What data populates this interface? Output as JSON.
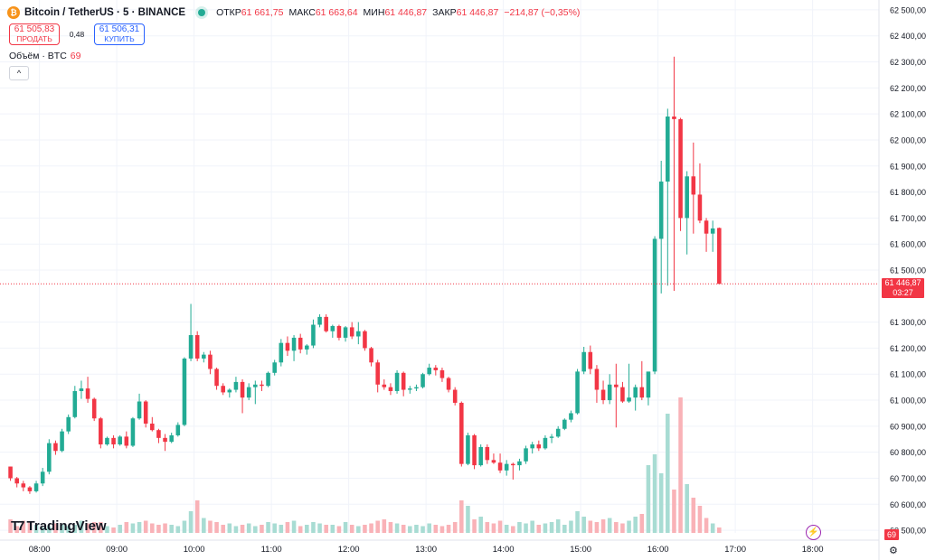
{
  "header": {
    "symbol_title": "Bitcoin / TetherUS · 5 · BINANCE",
    "open_label": "ОТКР",
    "open_value": "61 661,75",
    "high_label": "МАКС",
    "high_value": "61 663,64",
    "low_label": "МИН",
    "low_value": "61 446,87",
    "close_label": "ЗАКР",
    "close_value": "61 446,87",
    "change_value": "−214,87 (−0,35%)"
  },
  "trade": {
    "sell_price": "61 505,83",
    "sell_label": "ПРОДАТЬ",
    "spread": "0,48",
    "buy_price": "61 506,31",
    "buy_label": "КУПИТЬ"
  },
  "volume": {
    "label": "Объём · BTC",
    "value": "69",
    "collapse_glyph": "^"
  },
  "branding": {
    "name": "TradingView"
  },
  "price_tag": {
    "price": "61 446,87",
    "countdown": "03:27"
  },
  "volume_tag": "69",
  "colors": {
    "up": "#22ab94",
    "down": "#f23645",
    "up_volume": "#a8dcd3",
    "down_volume": "#f9b2b7",
    "grid": "#f0f3fa",
    "axis_text": "#131722"
  },
  "icons": {
    "logo": "bitcoin-logo-icon",
    "market_status": "market-open-dot-icon",
    "alert": "lightning-icon",
    "settings": "gear-icon"
  },
  "chart_data": {
    "type": "candlestick",
    "x_tick_labels": [
      "08:00",
      "09:00",
      "10:00",
      "11:00",
      "12:00",
      "13:00",
      "14:00",
      "15:00",
      "16:00",
      "17:00",
      "18:00"
    ],
    "y_tick_labels": [
      "62 500,00",
      "62 400,00",
      "62 300,00",
      "62 200,00",
      "62 100,00",
      "62 000,00",
      "61 900,00",
      "61 800,00",
      "61 700,00",
      "61 600,00",
      "61 500,00",
      "61 300,00",
      "61 200,00",
      "61 100,00",
      "61 000,00",
      "60 900,00",
      "60 800,00",
      "60 700,00",
      "60 600,00",
      "60 500,00"
    ],
    "ylim": [
      60490,
      62510
    ],
    "x_start_time": "07:35",
    "interval_minutes": 5,
    "last_price": 61446.87,
    "candles": [
      [
        60745,
        60745,
        60690,
        60700
      ],
      [
        60700,
        60705,
        60665,
        60680
      ],
      [
        60680,
        60690,
        60650,
        60665
      ],
      [
        60665,
        60670,
        60640,
        60650
      ],
      [
        60650,
        60690,
        60645,
        60680
      ],
      [
        60680,
        60740,
        60670,
        60725
      ],
      [
        60725,
        60850,
        60715,
        60835
      ],
      [
        60835,
        60845,
        60790,
        60805
      ],
      [
        60805,
        60890,
        60800,
        60880
      ],
      [
        60880,
        60945,
        60870,
        60935
      ],
      [
        60935,
        61055,
        60930,
        61035
      ],
      [
        61035,
        61075,
        61005,
        61045
      ],
      [
        61045,
        61090,
        60990,
        61005
      ],
      [
        61005,
        61010,
        60920,
        60930
      ],
      [
        60930,
        60935,
        60815,
        60830
      ],
      [
        60830,
        60860,
        60825,
        60855
      ],
      [
        60855,
        60865,
        60815,
        60830
      ],
      [
        60830,
        60865,
        60825,
        60860
      ],
      [
        60860,
        60880,
        60815,
        60825
      ],
      [
        60825,
        60935,
        60820,
        60930
      ],
      [
        60930,
        61025,
        60925,
        60995
      ],
      [
        60995,
        61000,
        60895,
        60910
      ],
      [
        60910,
        60935,
        60880,
        60885
      ],
      [
        60885,
        60890,
        60835,
        60855
      ],
      [
        60855,
        60870,
        60805,
        60840
      ],
      [
        60840,
        60875,
        60835,
        60865
      ],
      [
        60865,
        60915,
        60860,
        60905
      ],
      [
        60905,
        61165,
        60900,
        61160
      ],
      [
        61160,
        61370,
        61150,
        61250
      ],
      [
        61250,
        61265,
        61150,
        61160
      ],
      [
        61160,
        61185,
        61145,
        61175
      ],
      [
        61175,
        61190,
        61100,
        61120
      ],
      [
        61120,
        61125,
        61040,
        61055
      ],
      [
        61055,
        61065,
        61020,
        61030
      ],
      [
        61030,
        61045,
        61010,
        61040
      ],
      [
        61040,
        61090,
        61030,
        61070
      ],
      [
        61070,
        61080,
        60950,
        61010
      ],
      [
        61010,
        61065,
        61000,
        61050
      ],
      [
        61050,
        61075,
        60985,
        61060
      ],
      [
        61060,
        61075,
        61035,
        61055
      ],
      [
        61055,
        61110,
        61050,
        61105
      ],
      [
        61105,
        61155,
        61095,
        61145
      ],
      [
        61145,
        61235,
        61130,
        61220
      ],
      [
        61220,
        61245,
        61170,
        61190
      ],
      [
        61190,
        61250,
        61150,
        61240
      ],
      [
        61240,
        61255,
        61180,
        61195
      ],
      [
        61195,
        61215,
        61175,
        61210
      ],
      [
        61210,
        61310,
        61200,
        61290
      ],
      [
        61290,
        61330,
        61280,
        61320
      ],
      [
        61320,
        61330,
        61260,
        61265
      ],
      [
        61265,
        61290,
        61240,
        61285
      ],
      [
        61285,
        61290,
        61230,
        61240
      ],
      [
        61240,
        61285,
        61225,
        61280
      ],
      [
        61280,
        61300,
        61235,
        61245
      ],
      [
        61245,
        61300,
        61215,
        61265
      ],
      [
        61265,
        61270,
        61190,
        61200
      ],
      [
        61200,
        61205,
        61130,
        61145
      ],
      [
        61145,
        61155,
        61030,
        61060
      ],
      [
        61060,
        61080,
        61040,
        61050
      ],
      [
        61050,
        61065,
        61020,
        61035
      ],
      [
        61035,
        61115,
        61025,
        61105
      ],
      [
        61105,
        61110,
        61015,
        61040
      ],
      [
        61040,
        61055,
        61025,
        61045
      ],
      [
        61045,
        61060,
        61035,
        61050
      ],
      [
        61050,
        61105,
        61045,
        61100
      ],
      [
        61100,
        61140,
        61095,
        61125
      ],
      [
        61125,
        61135,
        61095,
        61115
      ],
      [
        61115,
        61125,
        61070,
        61085
      ],
      [
        61085,
        61090,
        61030,
        61040
      ],
      [
        61040,
        61050,
        60980,
        60990
      ],
      [
        60990,
        60995,
        60745,
        60755
      ],
      [
        60755,
        60875,
        60750,
        60865
      ],
      [
        60865,
        60870,
        60735,
        60750
      ],
      [
        60750,
        60830,
        60745,
        60820
      ],
      [
        60820,
        60830,
        60755,
        60770
      ],
      [
        60770,
        60795,
        60755,
        60760
      ],
      [
        60760,
        60795,
        60720,
        60730
      ],
      [
        60730,
        60770,
        60710,
        60755
      ],
      [
        60755,
        60760,
        60695,
        60750
      ],
      [
        60750,
        60775,
        60730,
        60765
      ],
      [
        60765,
        60825,
        60755,
        60815
      ],
      [
        60815,
        60840,
        60795,
        60830
      ],
      [
        60830,
        60845,
        60805,
        60815
      ],
      [
        60815,
        60865,
        60810,
        60855
      ],
      [
        60855,
        60870,
        60835,
        60860
      ],
      [
        60860,
        60900,
        60855,
        60890
      ],
      [
        60890,
        60930,
        60885,
        60925
      ],
      [
        60925,
        60960,
        60915,
        60950
      ],
      [
        60950,
        61120,
        60945,
        61110
      ],
      [
        61110,
        61205,
        61100,
        61185
      ],
      [
        61185,
        61210,
        61100,
        61120
      ],
      [
        61120,
        61135,
        60990,
        61040
      ],
      [
        61040,
        61075,
        60985,
        61000
      ],
      [
        61000,
        61100,
        60985,
        61060
      ],
      [
        61060,
        61140,
        60895,
        61050
      ],
      [
        61050,
        61070,
        60990,
        60995
      ],
      [
        60995,
        61140,
        60990,
        61010
      ],
      [
        61010,
        61060,
        60960,
        61050
      ],
      [
        61050,
        61150,
        61000,
        61010
      ],
      [
        61010,
        61100,
        60980,
        61110
      ],
      [
        61110,
        61630,
        61100,
        61620
      ],
      [
        61620,
        61920,
        61410,
        61840
      ],
      [
        61840,
        62120,
        61440,
        62090
      ],
      [
        62090,
        62320,
        61420,
        62080
      ],
      [
        62080,
        62085,
        61650,
        61700
      ],
      [
        61700,
        61880,
        61560,
        61860
      ],
      [
        61860,
        61990,
        61640,
        61790
      ],
      [
        61790,
        61910,
        61680,
        61690
      ],
      [
        61690,
        61700,
        61570,
        61640
      ],
      [
        61640,
        61690,
        61570,
        61660
      ],
      [
        61661.75,
        61663.64,
        61446.87,
        61446.87
      ]
    ],
    "volume_levels_pct": [
      10,
      5,
      9,
      8,
      6,
      4,
      5,
      7,
      6,
      5,
      6,
      9,
      7,
      8,
      8,
      5,
      4,
      6,
      8,
      7,
      8,
      9,
      7,
      6,
      7,
      6,
      5,
      9,
      16,
      24,
      11,
      9,
      8,
      6,
      7,
      5,
      6,
      7,
      5,
      6,
      8,
      7,
      6,
      8,
      9,
      5,
      6,
      8,
      7,
      6,
      6,
      5,
      8,
      6,
      5,
      6,
      7,
      9,
      10,
      8,
      7,
      6,
      5,
      6,
      5,
      7,
      6,
      5,
      6,
      8,
      24,
      20,
      10,
      12,
      8,
      7,
      9,
      6,
      5,
      8,
      7,
      9,
      6,
      7,
      8,
      10,
      6,
      9,
      16,
      12,
      9,
      8,
      10,
      11,
      8,
      7,
      9,
      12,
      14,
      50,
      58,
      44,
      88,
      32,
      100,
      36,
      26,
      20,
      11,
      7,
      4
    ]
  }
}
